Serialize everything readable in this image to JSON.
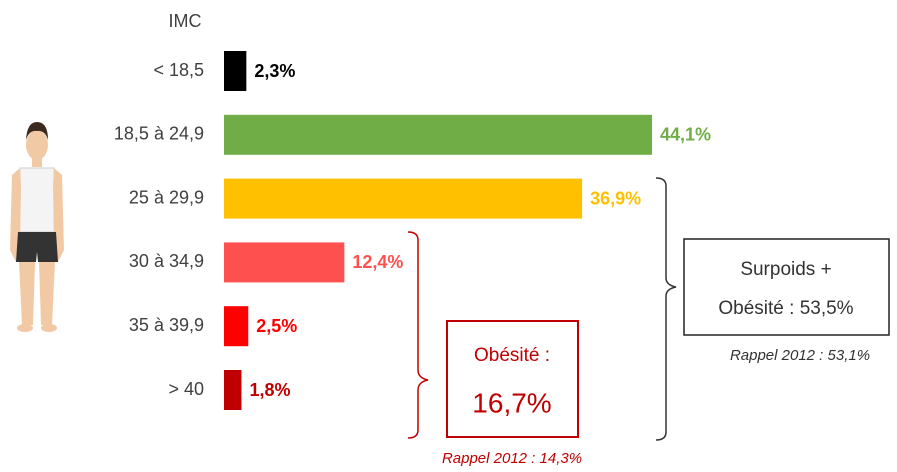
{
  "chart_data": {
    "type": "barh",
    "title": "IMC",
    "categories": [
      "< 18,5",
      "18,5 à 24,9",
      "25 à 29,9",
      "30 à 34,9",
      "35 à 39,9",
      "> 40"
    ],
    "values": [
      2.3,
      44.1,
      36.9,
      12.4,
      2.5,
      1.8
    ],
    "value_labels": [
      "2,3%",
      "44,1%",
      "36,9%",
      "12,4%",
      "2,5%",
      "1,8%"
    ],
    "colors": [
      "#000000",
      "#70ad47",
      "#ffc000",
      "#ff5050",
      "#ff0000",
      "#c00000"
    ],
    "label_colors": [
      "#000000",
      "#70ad47",
      "#ffc000",
      "#ff5050",
      "#ff0000",
      "#c00000"
    ],
    "annotations": {
      "obesity": {
        "line1": "Obésité :",
        "line2": "16,7%",
        "note": "Rappel 2012 : 14,3%"
      },
      "overweight": {
        "line1": "Surpoids +",
        "line2": "Obésité : 53,5%",
        "note": "Rappel 2012 : 53,1%"
      }
    }
  }
}
